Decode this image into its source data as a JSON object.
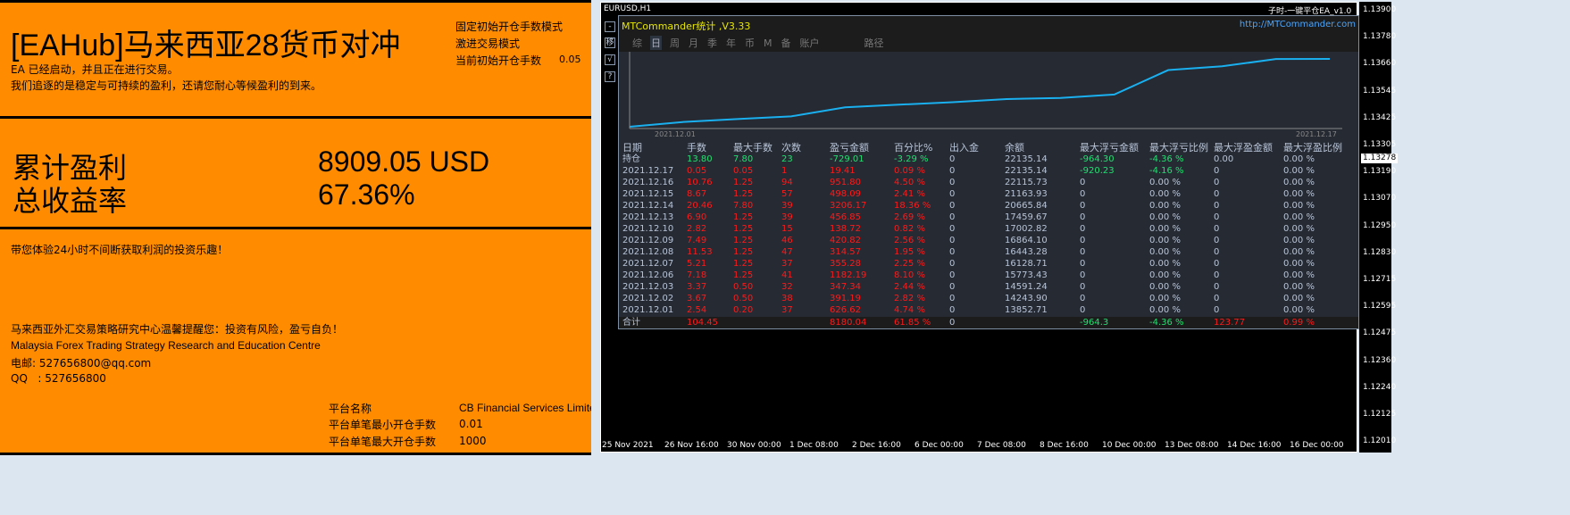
{
  "left": {
    "title": "[EAHub]马来西亚28货币对冲",
    "status1": "EA 已经启动，并且正在进行交易。",
    "status2": "我们追逐的是稳定与可持续的盈利，还请您耐心等候盈利的到来。",
    "mode1": "固定初始开仓手数模式",
    "mode2": "激进交易模式",
    "lot_label": "当前初始开仓手数",
    "lot_value": "0.05",
    "profit_label": "累计盈利",
    "profit_value": "8909.05 USD",
    "rate_label": "总收益率",
    "rate_value": "67.36%",
    "slogan": "带您体验24小时不间断获取利润的投资乐趣！",
    "warning": "马来西亚外汇交易策略研究中心温馨提醒您：投资有风险，盈亏自负！",
    "org": "Malaysia Forex Trading Strategy Research and Education Centre",
    "email": "电邮: 527656800@qq.com",
    "qq": "QQ   : 527656800",
    "platform_label": "平台名称",
    "platform_value": "CB Financial Services Limite",
    "min_label": "平台单笔最小开仓手数",
    "min_value": "0.01",
    "max_label": "平台单笔最大开仓手数",
    "max_value": "1000"
  },
  "chart": {
    "symbol": "EURUSD,H1",
    "ea_name": "子时-一键平仓EA_v1.0",
    "price_ticks": [
      "1.13900",
      "1.13780",
      "1.13660",
      "1.13545",
      "1.13425",
      "1.13305",
      "1.13190",
      "1.13070",
      "1.12950",
      "1.12830",
      "1.12715",
      "1.12595",
      "1.12475",
      "1.12360",
      "1.12240",
      "1.12125",
      "1.12010"
    ],
    "current_price": "1.13278",
    "time_ticks": [
      "25 Nov 2021",
      "26 Nov 16:00",
      "30 Nov 00:00",
      "1 Dec 08:00",
      "2 Dec 16:00",
      "6 Dec 00:00",
      "7 Dec 08:00",
      "8 Dec 16:00",
      "10 Dec 00:00",
      "13 Dec 08:00",
      "14 Dec 16:00",
      "16 Dec 00:00"
    ],
    "side_buttons": [
      "-",
      "移",
      "√",
      "?"
    ]
  },
  "panel": {
    "title": "MTCommander统计 ,V3.33",
    "url": "http://MTCommander.com",
    "tabs": [
      "综",
      "日",
      "周",
      "月",
      "季",
      "年",
      "币",
      "M",
      "备",
      "账户",
      "路径"
    ],
    "curve_start": "2021.12.01",
    "curve_end": "2021.12.17",
    "curve_color": "#1ab0f0",
    "headers": [
      "日期",
      "手数",
      "最大手数",
      "次数",
      "盈亏金额",
      "百分比%",
      "出入金",
      "余额",
      "最大浮亏金额",
      "最大浮亏比例",
      "最大浮盈金额",
      "最大浮盈比例"
    ],
    "position": [
      "持仓",
      "13.80",
      "7.80",
      "23",
      "-729.01",
      "-3.29 %",
      "0",
      "22135.14",
      "-964.30",
      "-4.36 %",
      "0.00",
      "0.00 %"
    ],
    "rows": [
      [
        "2021.12.17",
        "0.05",
        "0.05",
        "1",
        "19.41",
        "0.09 %",
        "0",
        "22135.14",
        "-920.23",
        "-4.16 %",
        "0",
        "0.00 %"
      ],
      [
        "2021.12.16",
        "10.76",
        "1.25",
        "94",
        "951.80",
        "4.50 %",
        "0",
        "22115.73",
        "0",
        "0.00 %",
        "0",
        "0.00 %"
      ],
      [
        "2021.12.15",
        "8.67",
        "1.25",
        "57",
        "498.09",
        "2.41 %",
        "0",
        "21163.93",
        "0",
        "0.00 %",
        "0",
        "0.00 %"
      ],
      [
        "2021.12.14",
        "20.46",
        "7.80",
        "39",
        "3206.17",
        "18.36 %",
        "0",
        "20665.84",
        "0",
        "0.00 %",
        "0",
        "0.00 %"
      ],
      [
        "2021.12.13",
        "6.90",
        "1.25",
        "39",
        "456.85",
        "2.69 %",
        "0",
        "17459.67",
        "0",
        "0.00 %",
        "0",
        "0.00 %"
      ],
      [
        "2021.12.10",
        "2.82",
        "1.25",
        "15",
        "138.72",
        "0.82 %",
        "0",
        "17002.82",
        "0",
        "0.00 %",
        "0",
        "0.00 %"
      ],
      [
        "2021.12.09",
        "7.49",
        "1.25",
        "46",
        "420.82",
        "2.56 %",
        "0",
        "16864.10",
        "0",
        "0.00 %",
        "0",
        "0.00 %"
      ],
      [
        "2021.12.08",
        "11.53",
        "1.25",
        "47",
        "314.57",
        "1.95 %",
        "0",
        "16443.28",
        "0",
        "0.00 %",
        "0",
        "0.00 %"
      ],
      [
        "2021.12.07",
        "5.21",
        "1.25",
        "37",
        "355.28",
        "2.25 %",
        "0",
        "16128.71",
        "0",
        "0.00 %",
        "0",
        "0.00 %"
      ],
      [
        "2021.12.06",
        "7.18",
        "1.25",
        "41",
        "1182.19",
        "8.10 %",
        "0",
        "15773.43",
        "0",
        "0.00 %",
        "0",
        "0.00 %"
      ],
      [
        "2021.12.03",
        "3.37",
        "0.50",
        "32",
        "347.34",
        "2.44 %",
        "0",
        "14591.24",
        "0",
        "0.00 %",
        "0",
        "0.00 %"
      ],
      [
        "2021.12.02",
        "3.67",
        "0.50",
        "38",
        "391.19",
        "2.82 %",
        "0",
        "14243.90",
        "0",
        "0.00 %",
        "0",
        "0.00 %"
      ],
      [
        "2021.12.01",
        "2.54",
        "0.20",
        "37",
        "626.62",
        "4.74 %",
        "0",
        "13852.71",
        "0",
        "0.00 %",
        "0",
        "0.00 %"
      ]
    ],
    "total": [
      "合计",
      "104.45",
      "",
      "",
      "8180.04",
      "61.85 %",
      "0",
      "",
      "-964.3",
      "-4.36 %",
      "123.77",
      "0.99 %"
    ]
  }
}
